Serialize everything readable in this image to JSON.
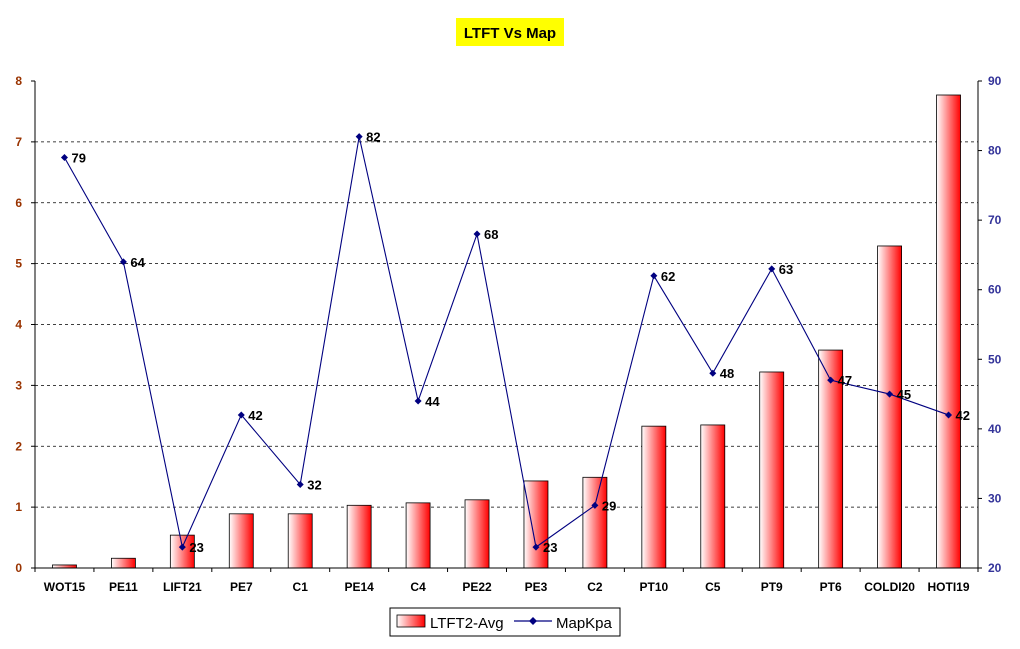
{
  "chart_data": {
    "type": "bar",
    "title": "LTFT Vs Map",
    "categories": [
      "WOT15",
      "PE11",
      "LIFT21",
      "PE7",
      "C1",
      "PE14",
      "C4",
      "PE22",
      "PE3",
      "C2",
      "PT10",
      "C5",
      "PT9",
      "PT6",
      "COLDI20",
      "HOTI19"
    ],
    "series": [
      {
        "name": "LTFT2-Avg",
        "type": "bar",
        "axis": "left",
        "values": [
          0.05,
          0.16,
          0.54,
          0.89,
          0.89,
          1.03,
          1.07,
          1.12,
          1.43,
          1.49,
          2.33,
          2.35,
          3.22,
          3.58,
          5.29,
          7.77
        ]
      },
      {
        "name": "MapKpa",
        "type": "line",
        "axis": "right",
        "values": [
          79,
          64,
          23,
          42,
          32,
          82,
          44,
          68,
          23,
          29,
          62,
          48,
          63,
          47,
          45,
          42
        ],
        "labels": [
          "79",
          "64",
          "23",
          "42",
          "32",
          "82",
          "44",
          "68",
          "23",
          "29",
          "62",
          "48",
          "63",
          "47",
          "45",
          "42"
        ]
      }
    ],
    "y_left": {
      "min": 0,
      "max": 8,
      "step": 1,
      "ticks": [
        "0",
        "1",
        "2",
        "3",
        "4",
        "5",
        "6",
        "7",
        "8"
      ]
    },
    "y_right": {
      "min": 20,
      "max": 90,
      "step": 10,
      "ticks": [
        "20",
        "30",
        "40",
        "50",
        "60",
        "70",
        "80",
        "90"
      ]
    },
    "grid": true,
    "legend_position": "bottom",
    "colors": {
      "bar_edge": "#000000",
      "bar_light": "#ffffff",
      "bar_dark": "#ff0000",
      "line": "#000080",
      "left_axis_text": "#993300",
      "right_axis_text": "#333399",
      "title_bg": "#ffff00"
    }
  }
}
